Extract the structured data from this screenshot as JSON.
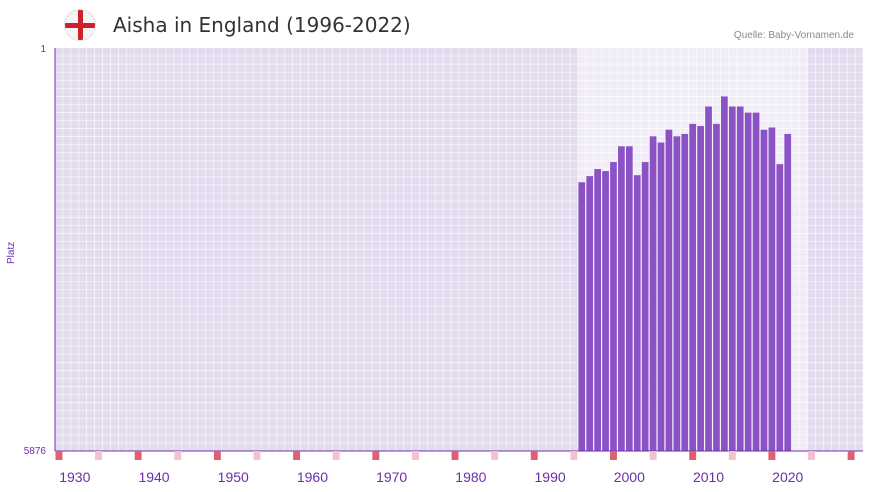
{
  "header": {
    "title": "Aisha in England (1996-2022)",
    "source": "Quelle: Baby-Vornamen.de",
    "flag_icon": "england-flag-icon"
  },
  "colors": {
    "bar": "#8b52c6",
    "plot_bg": "#e2dcee",
    "highlight_bg": "#f1edf8",
    "axis": "#6a2fa8",
    "decade_marker": "#e0606e",
    "half_decade_marker": "#f4c2c9"
  },
  "chart_data": {
    "type": "bar",
    "title": "Aisha in England (1996-2022)",
    "xlabel": "",
    "ylabel": "Platz",
    "y_axis_inverted": true,
    "ylim": [
      1,
      5876
    ],
    "ytick_labels": [
      "1",
      "5876"
    ],
    "xlim": [
      1928,
      2029
    ],
    "xtick_labels": [
      "1930",
      "1940",
      "1950",
      "1960",
      "1970",
      "1980",
      "1990",
      "2000",
      "2010",
      "2020"
    ],
    "highlight_range": [
      1994,
      2022
    ],
    "grid": true,
    "categories": [
      1994,
      1995,
      1996,
      1997,
      1998,
      1999,
      2000,
      2001,
      2002,
      2003,
      2004,
      2005,
      2006,
      2007,
      2008,
      2009,
      2010,
      2011,
      2012,
      2013,
      2014,
      2015,
      2016,
      2017,
      2018,
      2019,
      2020
    ],
    "values": [
      1958,
      1869,
      1766,
      1795,
      1664,
      1434,
      1434,
      1855,
      1664,
      1289,
      1379,
      1192,
      1289,
      1254,
      1107,
      1138,
      854,
      1107,
      707,
      854,
      854,
      943,
      943,
      1192,
      1160,
      1695,
      1254
    ]
  }
}
